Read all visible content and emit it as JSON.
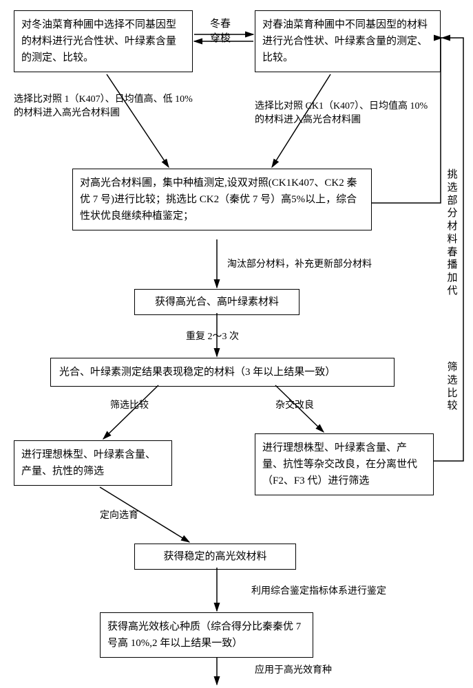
{
  "nodes": {
    "box_winter": "对冬油菜育种圃中选择不同基因型的材料进行光合性状、叶绿素含量的测定、比较。",
    "box_spring": "对春油菜育种圃中不同基因型的材料进行光合性状、叶绿素含量的测定、比较。",
    "box_pool": "对高光合材料圃，集中种植测定,设双对照(CK1K407、CK2 秦优 7 号)进行比较；挑选比 CK2（秦优 7 号）高5%以上，综合性状优良继续种植鉴定；",
    "box_high_mat": "获得高光合、高叶绿素材料",
    "box_stable_meas": "光合、叶绿素测定结果表现稳定的材料（3 年以上结果一致）",
    "box_screen_left": "进行理想株型、叶绿素含量、产量、抗性的筛选",
    "box_cross_right": "进行理想株型、叶绿素含量、产量、抗性等杂交改良，在分离世代（F2、F3 代）进行筛选",
    "box_stable_high": "获得稳定的高光效材料",
    "box_core": "获得高光效核心种质（综合得分比秦秦优 7 号高 10%,2 年以上结果一致）"
  },
  "labels": {
    "top_mid": "冬春\n穿梭",
    "left_sel": "选择比对照 1（K407）、日均值高、低 10%\n的材料进入高光合材料圃",
    "right_sel": "选择比对照 CK1（K407）、日均值高 10%\n的材料进入高光合材料圃",
    "right_v1": "挑选部分材料春播加代",
    "elim": "淘汰部分材料，补充更新部分材料",
    "repeat": "重复 2～3 次",
    "right_v2": "筛选比较",
    "filt_left": "筛选比较",
    "cross_right": "杂交改良",
    "directed": "定向选育",
    "ident": "利用综合鉴定指标体系进行鉴定",
    "apply": "应用于高光效育种"
  },
  "style": {
    "stroke": "#000000",
    "stroke_width": 1.5,
    "bg": "#ffffff",
    "font_size_box": 15,
    "font_size_label": 14
  }
}
